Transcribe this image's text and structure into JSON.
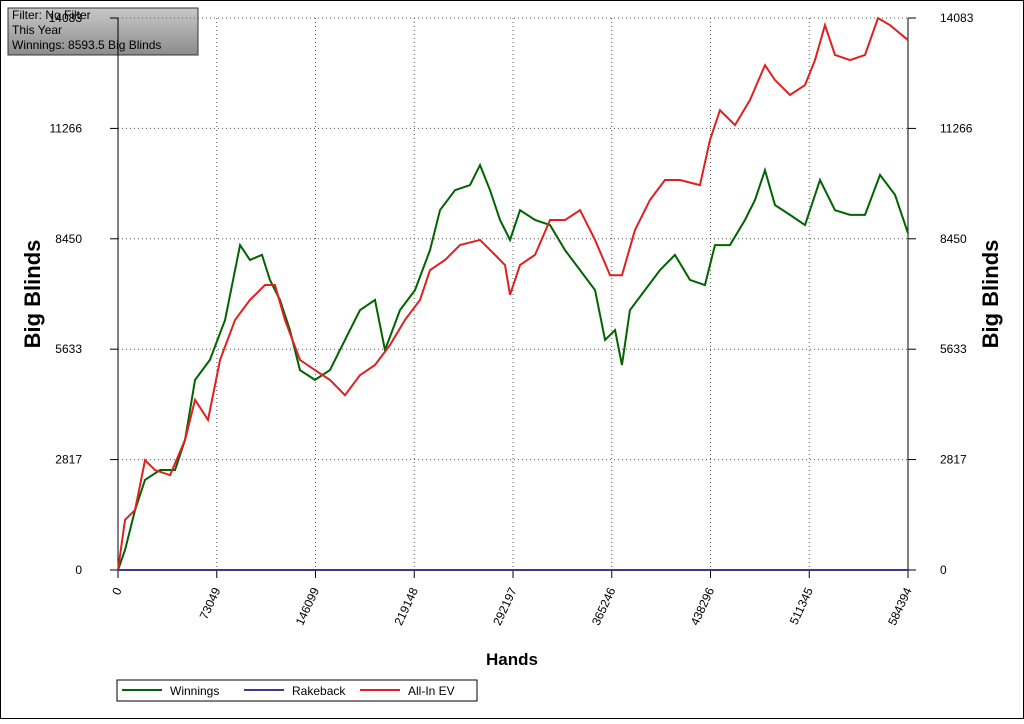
{
  "chart_data": {
    "type": "line",
    "annotations": [
      "Filter: No Filter",
      "This Year",
      "Winnings: 8593.5 Big Blinds"
    ],
    "xlabel": "Hands",
    "ylabel": "Big Blinds",
    "y2label": "Big Blinds",
    "xlim": [
      0,
      584394
    ],
    "xticks": [
      0,
      73049,
      146099,
      219148,
      292197,
      365246,
      438296,
      511345,
      584394
    ],
    "ylim": [
      0,
      14083
    ],
    "yticks": [
      0,
      2817,
      5633,
      8450,
      11266,
      14083
    ],
    "y2lim": [
      0,
      14083
    ],
    "y2ticks": [
      0,
      2817,
      5633,
      8450,
      11266,
      14083
    ],
    "grid": true,
    "series": [
      {
        "name": "Winnings",
        "color": "#006400",
        "x": [
          0,
          5200,
          12600,
          20000,
          31100,
          42200,
          49600,
          57000,
          68000,
          79200,
          90300,
          97600,
          106500,
          112400,
          119800,
          127200,
          134600,
          145700,
          156800,
          167900,
          179000,
          190100,
          197500,
          208600,
          219700,
          230800,
          238200,
          249300,
          260400,
          267800,
          275200,
          282600,
          290000,
          297400,
          308500,
          319600,
          330700,
          341800,
          352900,
          360300,
          367700,
          372800,
          378700,
          389800,
          400900,
          412000,
          423100,
          434200,
          441600,
          452700,
          463800,
          471200,
          478600,
          486000,
          497100,
          508200,
          519300,
          530400,
          541500,
          552600,
          563700,
          574800,
          584394
        ],
        "values": [
          0,
          510,
          1530,
          2300,
          2550,
          2550,
          3320,
          4850,
          5360,
          6380,
          8290,
          7910,
          8040,
          7400,
          6890,
          6120,
          5100,
          4850,
          5100,
          5870,
          6630,
          6890,
          5610,
          6630,
          7140,
          8160,
          9180,
          9690,
          9820,
          10330,
          9690,
          8930,
          8420,
          9180,
          8930,
          8800,
          8160,
          7650,
          7140,
          5870,
          6120,
          5230,
          6630,
          7140,
          7650,
          8040,
          7400,
          7270,
          8290,
          8290,
          8930,
          9440,
          10200,
          9310,
          9060,
          8800,
          9950,
          9180,
          9060,
          9060,
          10080,
          9570,
          8594
        ]
      },
      {
        "name": "Rakeback",
        "color": "#3a3a8c",
        "x": [
          0,
          584394
        ],
        "values": [
          0,
          0
        ]
      },
      {
        "name": "All-In EV",
        "color": "#e02020",
        "x": [
          0,
          5200,
          12600,
          20000,
          27400,
          38500,
          49600,
          57000,
          66600,
          75500,
          86600,
          97600,
          108700,
          116100,
          123500,
          134600,
          145700,
          156800,
          167900,
          179000,
          190100,
          201200,
          212300,
          223400,
          230800,
          241900,
          253000,
          267800,
          278900,
          286300,
          290000,
          297400,
          308500,
          319600,
          330700,
          341800,
          352900,
          364000,
          372800,
          382400,
          393500,
          404600,
          415700,
          430500,
          437900,
          445300,
          456400,
          467500,
          478600,
          486000,
          497100,
          508200,
          515600,
          523000,
          530400,
          541500,
          552600,
          562200,
          571100,
          584394
        ],
        "values": [
          0,
          1280,
          1530,
          2800,
          2550,
          2420,
          3320,
          4340,
          3830,
          5360,
          6380,
          6890,
          7270,
          7270,
          6380,
          5360,
          5100,
          4850,
          4460,
          4970,
          5230,
          5740,
          6380,
          6890,
          7650,
          7910,
          8290,
          8420,
          8040,
          7780,
          7020,
          7780,
          8040,
          8930,
          8930,
          9180,
          8420,
          7520,
          7520,
          8670,
          9440,
          9950,
          9950,
          9820,
          10970,
          11730,
          11350,
          11990,
          12880,
          12500,
          12120,
          12370,
          13010,
          13900,
          13140,
          13010,
          13140,
          14080,
          13900,
          13520
        ]
      }
    ]
  }
}
